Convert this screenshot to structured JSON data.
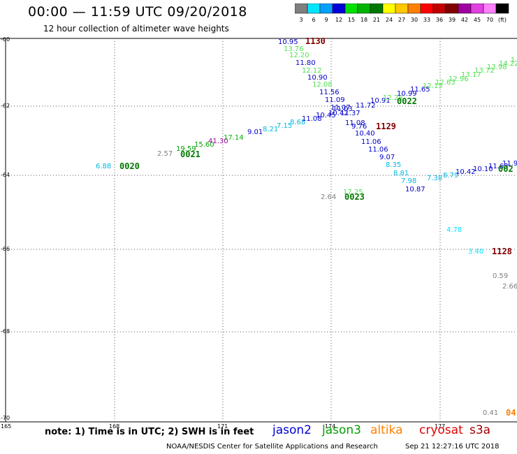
{
  "header": {
    "title": "00:00 — 11:59 UTC 09/20/2018",
    "subtitle": "12 hour collection of altimeter wave heights"
  },
  "colorbar": {
    "bins": [
      {
        "label": "3",
        "color": "#7f7f7f"
      },
      {
        "label": "6",
        "color": "#00e5ff"
      },
      {
        "label": "9",
        "color": "#00a0ff"
      },
      {
        "label": "12",
        "color": "#0000d8"
      },
      {
        "label": "15",
        "color": "#00e000"
      },
      {
        "label": "18",
        "color": "#00b400"
      },
      {
        "label": "21",
        "color": "#007800"
      },
      {
        "label": "24",
        "color": "#ffff00"
      },
      {
        "label": "27",
        "color": "#ffc800"
      },
      {
        "label": "30",
        "color": "#ff8000"
      },
      {
        "label": "33",
        "color": "#ff0000"
      },
      {
        "label": "36",
        "color": "#c00000"
      },
      {
        "label": "39",
        "color": "#800000"
      },
      {
        "label": "42",
        "color": "#a000a0"
      },
      {
        "label": "45",
        "color": "#e040e0"
      },
      {
        "label": "70",
        "color": "#ff80ff"
      },
      {
        "label": "(ft)",
        "color": "#000000"
      }
    ]
  },
  "axes": {
    "lon_labels": [
      "165",
      "168",
      "171",
      "-174",
      "177"
    ],
    "lat_labels": [
      "-60",
      "-62",
      "-64",
      "-66",
      "-68",
      "-70"
    ]
  },
  "passes": {
    "p0020": "0020",
    "p0021": "0021",
    "p0022": "0022",
    "p0023": "0023",
    "p1129": "1129",
    "p1130": "1130",
    "p1128": "1128",
    "pright02": "002",
    "pbottom04": "04"
  },
  "track_a": {
    "v1": "6.88",
    "v2": "2.57",
    "v3": "19.59",
    "v4": "15.60",
    "v5": "41.30",
    "v6": "17.14",
    "v7": "9.01",
    "v8": "8.21",
    "v9": "7.15",
    "v10": "8.68",
    "v11": "11.08",
    "v12": "10.45",
    "v13": "11.37",
    "v14": "11.03",
    "v15": "11.72",
    "v16": "10.91",
    "v17": "12.28",
    "v18": "10.99",
    "v19": "11.65",
    "v20": "12.15",
    "v21": "12.63",
    "v22": "12.96",
    "v23": "13.17",
    "v24": "13.72",
    "v25": "13.98",
    "v26": "14.22",
    "v27": "1"
  },
  "track_b": {
    "v1": "10.95",
    "v2": "13.76",
    "v3": "12.20",
    "v4": "11.80",
    "v5": "12.12",
    "v6": "10.90",
    "v7": "12.08",
    "v8": "11.56",
    "v9": "11.09",
    "v10": "11.07",
    "v11": "10.42",
    "v12": "11.08",
    "v13": "9.76",
    "v14": "10.40",
    "v15": "11.06",
    "v16": "11.06",
    "v17": "9.07",
    "v18": "8.35",
    "v19": "8.81",
    "v20": "7.98",
    "v21": "10.87",
    "v22": "7.38",
    "v23": "8.79",
    "v24": "10.42",
    "v25": "10.10",
    "v26": "11.63",
    "v27": "11.9"
  },
  "track_c": {
    "v1": "2.64",
    "v2": "17.25",
    "v3": "4.78",
    "v4": "3.40",
    "v5": "0.59",
    "v6": "2.66",
    "v7": "0.41"
  },
  "footer": {
    "note": "note: 1) Time is in UTC; 2) SWH is in feet",
    "sat1": "jason2",
    "sat2": "jason3",
    "sat3": "altika",
    "sat4": "cryosat",
    "sat5": "s3a",
    "credit": "NOAA/NESDIS Center for Satellite Applications and Research",
    "stamp": "Sep 21 12:27:16 UTC 2018"
  }
}
